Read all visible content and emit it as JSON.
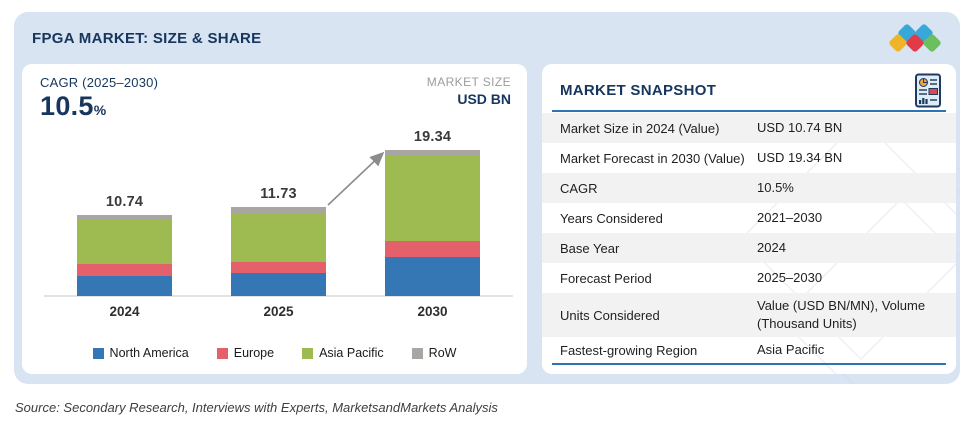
{
  "banner": {
    "title": "FPGA MARKET: SIZE & SHARE"
  },
  "logo": {
    "name": "marketsandmarkets-logo",
    "colors": {
      "blue": "#38a8d8",
      "yellow": "#f0b429",
      "red": "#e23b47",
      "green": "#6abf5e"
    }
  },
  "chart_panel": {
    "cagr_label": "CAGR (2025–2030)",
    "cagr_value": "10.5",
    "cagr_unit": "%",
    "market_size_label": "MARKET SIZE",
    "market_size_unit": "USD BN"
  },
  "chart_data": {
    "type": "bar",
    "stacked": true,
    "title": "FPGA market size by region, USD BN",
    "categories": [
      "2024",
      "2025",
      "2030"
    ],
    "totals": [
      10.74,
      11.73,
      19.34
    ],
    "total_labels": [
      "10.74",
      "11.73",
      "19.34"
    ],
    "series": [
      {
        "name": "North America",
        "color": "#3577b4",
        "values": [
          2.7,
          3.0,
          5.2
        ]
      },
      {
        "name": "Europe",
        "color": "#e4606b",
        "values": [
          1.5,
          1.45,
          2.1
        ]
      },
      {
        "name": "Asia Pacific",
        "color": "#9dbb50",
        "values": [
          5.8,
          6.55,
          11.3
        ]
      },
      {
        "name": "RoW",
        "color": "#a9a5a3",
        "values": [
          0.74,
          0.73,
          0.74
        ]
      }
    ],
    "ylim": [
      0,
      19.34
    ],
    "grid": false,
    "legend_position": "bottom",
    "annotation": "growth arrow from 2025 bar top to 2030 bar top"
  },
  "snapshot": {
    "title": "MARKET SNAPSHOT",
    "icon": "report-document-icon",
    "rows": [
      {
        "label": "Market Size in 2024 (Value)",
        "value": "USD 10.74 BN"
      },
      {
        "label": "Market Forecast in 2030 (Value)",
        "value": "USD 19.34 BN"
      },
      {
        "label": "CAGR",
        "value": "10.5%"
      },
      {
        "label": "Years Considered",
        "value": "2021–2030"
      },
      {
        "label": "Base Year",
        "value": "2024"
      },
      {
        "label": "Forecast Period",
        "value": "2025–2030"
      },
      {
        "label": "Units Considered",
        "value": "Value (USD BN/MN), Volume (Thousand Units)"
      },
      {
        "label": "Fastest-growing Region",
        "value": "Asia Pacific"
      }
    ]
  },
  "footer": {
    "source": "Source: Secondary Research, Interviews with Experts, MarketsandMarkets Analysis"
  },
  "colors": {
    "banner_bg": "#d8e4f1",
    "accent_navy": "#17365d",
    "table_rule_blue": "#2e74b5",
    "row_stripe": "#f2f2f2",
    "axis_gray": "#e3e3e3",
    "arrow_gray": "#8c8c8c"
  }
}
